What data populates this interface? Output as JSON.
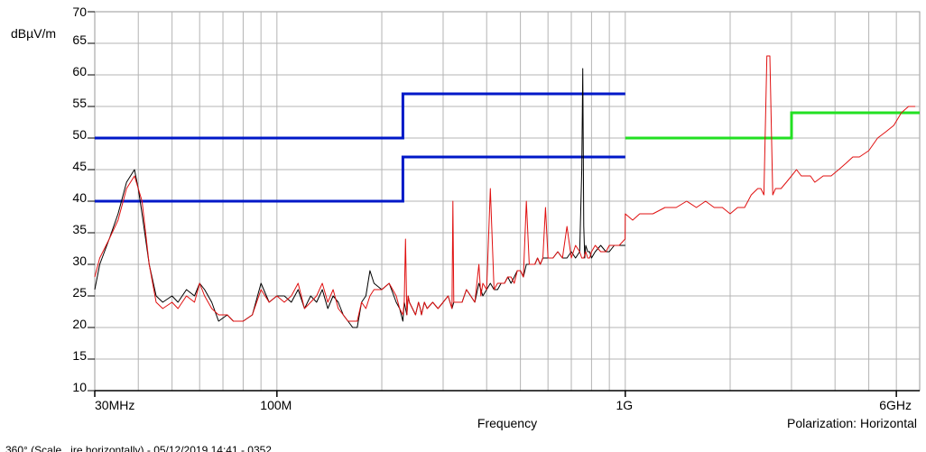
{
  "chart_data": {
    "type": "line",
    "xscale": "log",
    "xlim": [
      30,
      7000
    ],
    "ylim": [
      10,
      70
    ],
    "grid": true,
    "ylabel": "dBµV/m",
    "xlabel": "Frequency",
    "annotation": "Polarization: Horizontal",
    "footer": "360° (Scale...ire horizontally) - 05/12/2019 14:41 - 0352",
    "y_ticks": [
      10,
      15,
      20,
      25,
      30,
      35,
      40,
      45,
      50,
      55,
      60,
      65,
      70
    ],
    "x_tick_labels": [
      {
        "x": 30,
        "label": "30MHz"
      },
      {
        "x": 100,
        "label": "100M"
      },
      {
        "x": 1000,
        "label": "1G"
      },
      {
        "x": 6000,
        "label": "6GHz"
      }
    ],
    "limit_lines": [
      {
        "color": "#0018c8",
        "points": [
          [
            30,
            50
          ],
          [
            230,
            50
          ],
          [
            230,
            57
          ],
          [
            1000,
            57
          ]
        ]
      },
      {
        "color": "#0018c8",
        "points": [
          [
            30,
            40
          ],
          [
            230,
            40
          ],
          [
            230,
            47
          ],
          [
            1000,
            47
          ]
        ]
      },
      {
        "color": "#22e022",
        "points": [
          [
            1000,
            50
          ],
          [
            3000,
            50
          ],
          [
            3000,
            54
          ],
          [
            7000,
            54
          ]
        ]
      }
    ],
    "series": [
      {
        "color": "#000000",
        "x": [
          30,
          31,
          33,
          35,
          37,
          38,
          39,
          40,
          41,
          43,
          45,
          47,
          50,
          52,
          55,
          58,
          60,
          62,
          65,
          68,
          72,
          75,
          80,
          85,
          90,
          95,
          100,
          105,
          110,
          115,
          120,
          125,
          130,
          135,
          140,
          145,
          150,
          155,
          160,
          165,
          170,
          175,
          180,
          185,
          190,
          200,
          210,
          220,
          225,
          230,
          232,
          234,
          236,
          238,
          240,
          245,
          250,
          255,
          258,
          260,
          265,
          270,
          280,
          290,
          300,
          310,
          318,
          322,
          330,
          340,
          350,
          360,
          370,
          380,
          390,
          400,
          410,
          420,
          430,
          440,
          450,
          460,
          470,
          480,
          490,
          500,
          510,
          520,
          530,
          540,
          550,
          560,
          570,
          580,
          590,
          600,
          620,
          640,
          660,
          680,
          700,
          720,
          740,
          750,
          755,
          760,
          765,
          770,
          780,
          790,
          800,
          820,
          850,
          880,
          900,
          930,
          960,
          1000
        ],
        "y": [
          26,
          30,
          34,
          38,
          43,
          44,
          45,
          42,
          38,
          30,
          25,
          24,
          25,
          24,
          26,
          25,
          27,
          26,
          24,
          21,
          22,
          21,
          21,
          22,
          27,
          24,
          25,
          25,
          24,
          26,
          23,
          25,
          24,
          26,
          23,
          25,
          24,
          22,
          21,
          20,
          20,
          24,
          25,
          29,
          27,
          26,
          27,
          24,
          23,
          21,
          24,
          23,
          22,
          25,
          24,
          23,
          22,
          24,
          23,
          22,
          24,
          23,
          24,
          23,
          24,
          25,
          23,
          24,
          24,
          24,
          26,
          25,
          24,
          27,
          25,
          26,
          27,
          26,
          26,
          27,
          27,
          28,
          27,
          28,
          29,
          29,
          28,
          30,
          30,
          30,
          30,
          31,
          30,
          31,
          31,
          31,
          31,
          32,
          31,
          31,
          32,
          31,
          32,
          45,
          61,
          36,
          31,
          33,
          32,
          32,
          31,
          32,
          33,
          32,
          32,
          33,
          33,
          33
        ]
      },
      {
        "color": "#e01010",
        "x": [
          30,
          31,
          33,
          35,
          37,
          38,
          39,
          40,
          41,
          43,
          45,
          47,
          50,
          52,
          55,
          58,
          60,
          62,
          65,
          68,
          72,
          75,
          80,
          85,
          90,
          95,
          100,
          105,
          110,
          115,
          120,
          125,
          130,
          135,
          140,
          145,
          150,
          155,
          160,
          165,
          170,
          175,
          180,
          185,
          190,
          200,
          210,
          220,
          225,
          230,
          232,
          234,
          236,
          238,
          240,
          245,
          250,
          255,
          258,
          260,
          265,
          270,
          280,
          290,
          300,
          310,
          318,
          320,
          322,
          330,
          340,
          350,
          360,
          370,
          380,
          385,
          390,
          400,
          410,
          420,
          430,
          440,
          450,
          460,
          470,
          480,
          490,
          500,
          510,
          520,
          530,
          540,
          550,
          560,
          570,
          580,
          590,
          600,
          620,
          640,
          660,
          680,
          700,
          720,
          740,
          750,
          760,
          770,
          780,
          790,
          800,
          820,
          850,
          880,
          900,
          930,
          960,
          999,
          1000,
          1050,
          1100,
          1150,
          1200,
          1300,
          1400,
          1500,
          1600,
          1700,
          1800,
          1900,
          2000,
          2100,
          2200,
          2300,
          2400,
          2450,
          2500,
          2550,
          2600,
          2650,
          2700,
          2800,
          2900,
          3000,
          3100,
          3200,
          3300,
          3400,
          3500,
          3700,
          3900,
          4100,
          4300,
          4500,
          4700,
          5000,
          5300,
          5600,
          5900,
          6200,
          6500,
          6800
        ],
        "y": [
          28,
          31,
          34,
          37,
          42,
          43,
          44,
          42,
          40,
          30,
          24,
          23,
          24,
          23,
          25,
          24,
          27,
          25,
          23,
          22,
          22,
          21,
          21,
          22,
          26,
          24,
          25,
          24,
          25,
          27,
          23,
          24,
          25,
          27,
          24,
          26,
          23,
          22,
          21,
          21,
          21,
          24,
          23,
          25,
          26,
          26,
          27,
          25,
          23,
          22,
          24,
          34,
          22,
          25,
          24,
          23,
          22,
          24,
          23,
          22,
          24,
          23,
          24,
          23,
          24,
          25,
          23,
          40,
          24,
          24,
          24,
          26,
          25,
          24,
          30,
          25,
          27,
          26,
          42,
          26,
          27,
          27,
          27,
          28,
          28,
          27,
          29,
          29,
          28,
          40,
          30,
          30,
          30,
          31,
          30,
          31,
          39,
          31,
          31,
          32,
          31,
          36,
          31,
          33,
          32,
          31,
          31,
          32,
          31,
          31,
          32,
          33,
          32,
          32,
          33,
          33,
          33,
          34,
          38,
          37,
          38,
          38,
          38,
          39,
          39,
          40,
          39,
          40,
          39,
          39,
          38,
          39,
          39,
          41,
          42,
          42,
          41,
          63,
          63,
          41,
          42,
          42,
          43,
          44,
          45,
          44,
          44,
          44,
          43,
          44,
          44,
          45,
          46,
          47,
          47,
          48,
          50,
          51,
          52,
          54,
          55,
          55
        ]
      }
    ]
  }
}
